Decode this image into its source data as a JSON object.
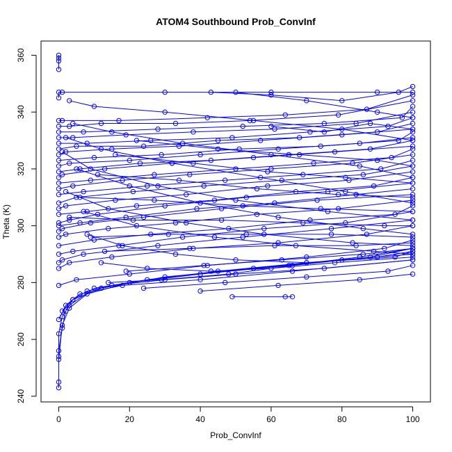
{
  "chart_data": {
    "type": "line",
    "title": "ATOM4 Southbound Prob_ConvInf",
    "xlabel": "Prob_ConvInf",
    "ylabel": "Theta (K)",
    "xlim": [
      -5,
      105
    ],
    "ylim": [
      238,
      365
    ],
    "xticks": [
      0,
      20,
      40,
      60,
      80,
      100
    ],
    "yticks": [
      240,
      260,
      280,
      300,
      320,
      340,
      360
    ],
    "xtick_labels": [
      "0",
      "20",
      "40",
      "60",
      "80",
      "100"
    ],
    "ytick_labels": [
      "240",
      "260",
      "280",
      "300",
      "320",
      "340",
      "360"
    ],
    "grid": false,
    "legend": "none",
    "series_color": "#0000ff",
    "marker": "open-circle",
    "series": [
      {
        "x": [
          0,
          0,
          1,
          2,
          4,
          8,
          15,
          30,
          50,
          75,
          100
        ],
        "y": [
          243,
          256,
          264,
          270,
          274,
          277,
          279,
          281,
          283,
          285,
          288
        ]
      },
      {
        "x": [
          0,
          0,
          0,
          1,
          3,
          10,
          25,
          45,
          70,
          90,
          100
        ],
        "y": [
          245,
          254,
          262,
          268,
          272,
          278,
          281,
          284,
          287,
          289,
          291
        ]
      },
      {
        "x": [
          0,
          1,
          3,
          8,
          20,
          40,
          65,
          85,
          100
        ],
        "y": [
          253,
          265,
          271,
          276,
          280,
          283,
          286,
          289,
          292
        ]
      },
      {
        "x": [
          0,
          2,
          6,
          18,
          40,
          66,
          100
        ],
        "y": [
          267,
          272,
          276,
          279,
          281,
          284,
          288
        ]
      },
      {
        "x": [
          1,
          4,
          12,
          30,
          55,
          80,
          100
        ],
        "y": [
          270,
          274,
          278,
          282,
          285,
          288,
          290
        ]
      },
      {
        "x": [
          49,
          64,
          66
        ],
        "y": [
          275,
          275,
          275
        ]
      },
      {
        "x": [
          0,
          5,
          20,
          42,
          70,
          92,
          100
        ],
        "y": [
          279,
          281,
          283,
          286,
          289,
          292,
          295
        ]
      },
      {
        "x": [
          0,
          3,
          15,
          38,
          62,
          87,
          100
        ],
        "y": [
          285,
          287,
          289,
          292,
          294,
          297,
          300
        ]
      },
      {
        "x": [
          0,
          1,
          7,
          28,
          52,
          77,
          100
        ],
        "y": [
          287,
          288,
          290,
          293,
          296,
          299,
          302
        ]
      },
      {
        "x": [
          0,
          4,
          17,
          35,
          58,
          81,
          100
        ],
        "y": [
          290,
          291,
          293,
          296,
          299,
          301,
          305
        ]
      },
      {
        "x": [
          0,
          10,
          26,
          48,
          71,
          95,
          100
        ],
        "y": [
          293,
          295,
          297,
          299,
          302,
          304,
          307
        ]
      },
      {
        "x": [
          0,
          2,
          14,
          33,
          56,
          79,
          100
        ],
        "y": [
          296,
          297,
          299,
          301,
          304,
          306,
          309
        ]
      },
      {
        "x": [
          0,
          1,
          9,
          24,
          46,
          73,
          100
        ],
        "y": [
          298,
          299,
          301,
          303,
          306,
          309,
          311
        ]
      },
      {
        "x": [
          0,
          6,
          19,
          39,
          61,
          84,
          100
        ],
        "y": [
          300,
          301,
          303,
          306,
          308,
          311,
          313
        ]
      },
      {
        "x": [
          0,
          3,
          11,
          30,
          53,
          76,
          100
        ],
        "y": [
          301,
          302,
          304,
          307,
          310,
          312,
          315
        ]
      },
      {
        "x": [
          0,
          8,
          22,
          44,
          67,
          89,
          100
        ],
        "y": [
          304,
          305,
          307,
          309,
          312,
          314,
          317
        ]
      },
      {
        "x": [
          0,
          2,
          16,
          36,
          59,
          82,
          100
        ],
        "y": [
          306,
          307,
          309,
          311,
          314,
          316,
          319
        ]
      },
      {
        "x": [
          0,
          5,
          21,
          41,
          63,
          86,
          100
        ],
        "y": [
          308,
          310,
          312,
          314,
          316,
          318,
          321
        ]
      },
      {
        "x": [
          0,
          7,
          25,
          47,
          69,
          91,
          100
        ],
        "y": [
          311,
          312,
          314,
          316,
          318,
          320,
          323
        ]
      },
      {
        "x": [
          0,
          4,
          18,
          37,
          60,
          83,
          100
        ],
        "y": [
          313,
          314,
          316,
          318,
          320,
          322,
          325
        ]
      },
      {
        "x": [
          0,
          9,
          27,
          50,
          72,
          94,
          100
        ],
        "y": [
          315,
          316,
          318,
          320,
          322,
          324,
          327
        ]
      },
      {
        "x": [
          0,
          1,
          13,
          32,
          55,
          78,
          100
        ],
        "y": [
          317,
          318,
          320,
          322,
          324,
          326,
          328
        ]
      },
      {
        "x": [
          0,
          6,
          23,
          43,
          65,
          88,
          100
        ],
        "y": [
          319,
          320,
          322,
          323,
          325,
          327,
          330
        ]
      },
      {
        "x": [
          0,
          3,
          20,
          40,
          62,
          85,
          100
        ],
        "y": [
          321,
          322,
          323,
          325,
          327,
          329,
          331
        ]
      },
      {
        "x": [
          0,
          10,
          29,
          51,
          74,
          96,
          100
        ],
        "y": [
          323,
          324,
          325,
          327,
          328,
          330,
          333
        ]
      },
      {
        "x": [
          0,
          2,
          15,
          34,
          57,
          80,
          100
        ],
        "y": [
          325,
          326,
          327,
          328,
          330,
          332,
          334
        ]
      },
      {
        "x": [
          0,
          5,
          24,
          45,
          68,
          90,
          100
        ],
        "y": [
          327,
          328,
          328,
          330,
          331,
          333,
          336
        ]
      },
      {
        "x": [
          0,
          8,
          26,
          49,
          71,
          93,
          100
        ],
        "y": [
          329,
          329,
          330,
          331,
          333,
          335,
          338
        ]
      },
      {
        "x": [
          0,
          4,
          19,
          38,
          61,
          84,
          100
        ],
        "y": [
          331,
          331,
          332,
          333,
          334,
          336,
          340
        ]
      },
      {
        "x": [
          0,
          7,
          28,
          52,
          75,
          97,
          100
        ],
        "y": [
          333,
          333,
          334,
          335,
          336,
          338,
          342
        ]
      },
      {
        "x": [
          0,
          3,
          12,
          33,
          54,
          79,
          100
        ],
        "y": [
          335,
          335,
          336,
          336,
          337,
          339,
          344
        ]
      },
      {
        "x": [
          0,
          1,
          17,
          42,
          64,
          87,
          100
        ],
        "y": [
          337,
          337,
          337,
          338,
          339,
          341,
          346
        ]
      },
      {
        "x": [
          0,
          0,
          1,
          30,
          60,
          90,
          100
        ],
        "y": [
          345,
          347,
          347,
          347,
          347,
          347,
          347
        ]
      },
      {
        "x": [
          0,
          0,
          0,
          0
        ],
        "y": [
          355,
          358,
          359,
          360
        ]
      },
      {
        "x": [
          3,
          10,
          30,
          55,
          80,
          100
        ],
        "y": [
          344,
          342,
          340,
          337,
          334,
          330
        ]
      },
      {
        "x": [
          4,
          15,
          35,
          60,
          85,
          100
        ],
        "y": [
          336,
          333,
          329,
          325,
          321,
          317
        ]
      },
      {
        "x": [
          2,
          12,
          32,
          57,
          81,
          100
        ],
        "y": [
          331,
          327,
          322,
          317,
          312,
          308
        ]
      },
      {
        "x": [
          1,
          9,
          28,
          50,
          76,
          100
        ],
        "y": [
          326,
          320,
          314,
          309,
          305,
          302
        ]
      },
      {
        "x": [
          5,
          20,
          40,
          62,
          86,
          100
        ],
        "y": [
          320,
          314,
          308,
          303,
          299,
          297
        ]
      },
      {
        "x": [
          2,
          14,
          36,
          58,
          83,
          100
        ],
        "y": [
          312,
          306,
          301,
          297,
          294,
          293
        ]
      },
      {
        "x": [
          7,
          22,
          44,
          67,
          89,
          100
        ],
        "y": [
          305,
          300,
          296,
          293,
          291,
          290
        ]
      },
      {
        "x": [
          8,
          18,
          33,
          50,
          70,
          95,
          100
        ],
        "y": [
          297,
          293,
          290,
          288,
          287,
          289,
          291
        ]
      },
      {
        "x": [
          12,
          25,
          43,
          60,
          78,
          100
        ],
        "y": [
          287,
          285,
          284,
          285,
          287,
          289
        ]
      },
      {
        "x": [
          14,
          29,
          48,
          66,
          88,
          100
        ],
        "y": [
          280,
          281,
          283,
          286,
          289,
          292
        ]
      },
      {
        "x": [
          43,
          60,
          80,
          96,
          100
        ],
        "y": [
          347,
          346,
          344,
          347,
          349
        ]
      },
      {
        "x": [
          50,
          70,
          90,
          100
        ],
        "y": [
          347,
          344,
          340,
          338
        ]
      },
      {
        "x": [
          60,
          75,
          88,
          100
        ],
        "y": [
          335,
          333,
          336,
          334
        ]
      },
      {
        "x": [
          22,
          45,
          68,
          90,
          100
        ],
        "y": [
          330,
          327,
          325,
          323,
          321
        ]
      },
      {
        "x": [
          16,
          38,
          59,
          81,
          100
        ],
        "y": [
          325,
          322,
          319,
          317,
          315
        ]
      },
      {
        "x": [
          11,
          34,
          56,
          79,
          100
        ],
        "y": [
          318,
          316,
          313,
          311,
          310
        ]
      },
      {
        "x": [
          6,
          27,
          52,
          74,
          100
        ],
        "y": [
          310,
          309,
          307,
          306,
          305
        ]
      },
      {
        "x": [
          3,
          21,
          46,
          69,
          92,
          100
        ],
        "y": [
          303,
          302,
          302,
          301,
          300,
          300
        ]
      },
      {
        "x": [
          9,
          31,
          53,
          77,
          100
        ],
        "y": [
          296,
          297,
          297,
          297,
          296
        ]
      },
      {
        "x": [
          13,
          37,
          61,
          84,
          100
        ],
        "y": [
          291,
          292,
          293,
          293,
          294
        ]
      },
      {
        "x": [
          19,
          41,
          63,
          86,
          100
        ],
        "y": [
          284,
          286,
          288,
          290,
          292
        ]
      },
      {
        "x": [
          24,
          47,
          70,
          93,
          100
        ],
        "y": [
          278,
          280,
          282,
          284,
          286
        ]
      },
      {
        "x": [
          40,
          62,
          85,
          100
        ],
        "y": [
          277,
          279,
          281,
          283
        ]
      }
    ]
  }
}
